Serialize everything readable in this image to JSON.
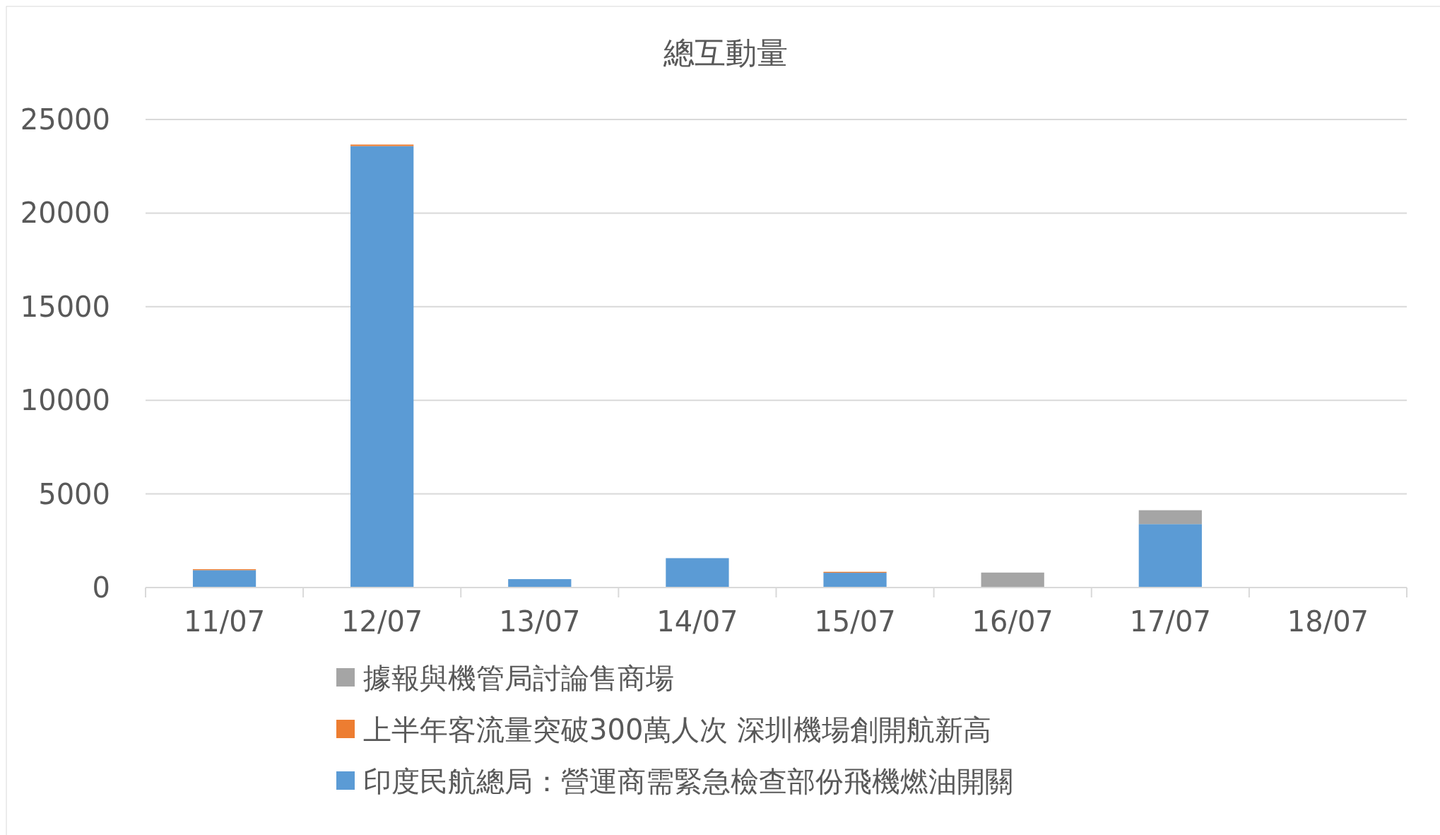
{
  "chart_data": {
    "type": "bar",
    "title": "總互動量",
    "stacked": true,
    "categories": [
      "11/07",
      "12/07",
      "13/07",
      "14/07",
      "15/07",
      "16/07",
      "17/07",
      "18/07"
    ],
    "series": [
      {
        "name": "印度民航總局：營運商需緊急檢查部份飛機燃油開關",
        "color": "#5b9bd5",
        "values": [
          930,
          23580,
          450,
          1570,
          790,
          0,
          3390,
          0
        ]
      },
      {
        "name": "上半年客流量突破300萬人次 深圳機場創開航新高",
        "color": "#ed7d31",
        "values": [
          50,
          80,
          0,
          0,
          50,
          0,
          0,
          0
        ]
      },
      {
        "name": "據報與機管局討論售商場",
        "color": "#a5a5a5",
        "values": [
          0,
          0,
          0,
          0,
          0,
          800,
          740,
          0
        ]
      }
    ],
    "ylim": [
      0,
      25000
    ],
    "yticks": [
      0,
      5000,
      10000,
      15000,
      20000,
      25000
    ],
    "grid": "y",
    "legend": "bottom"
  }
}
